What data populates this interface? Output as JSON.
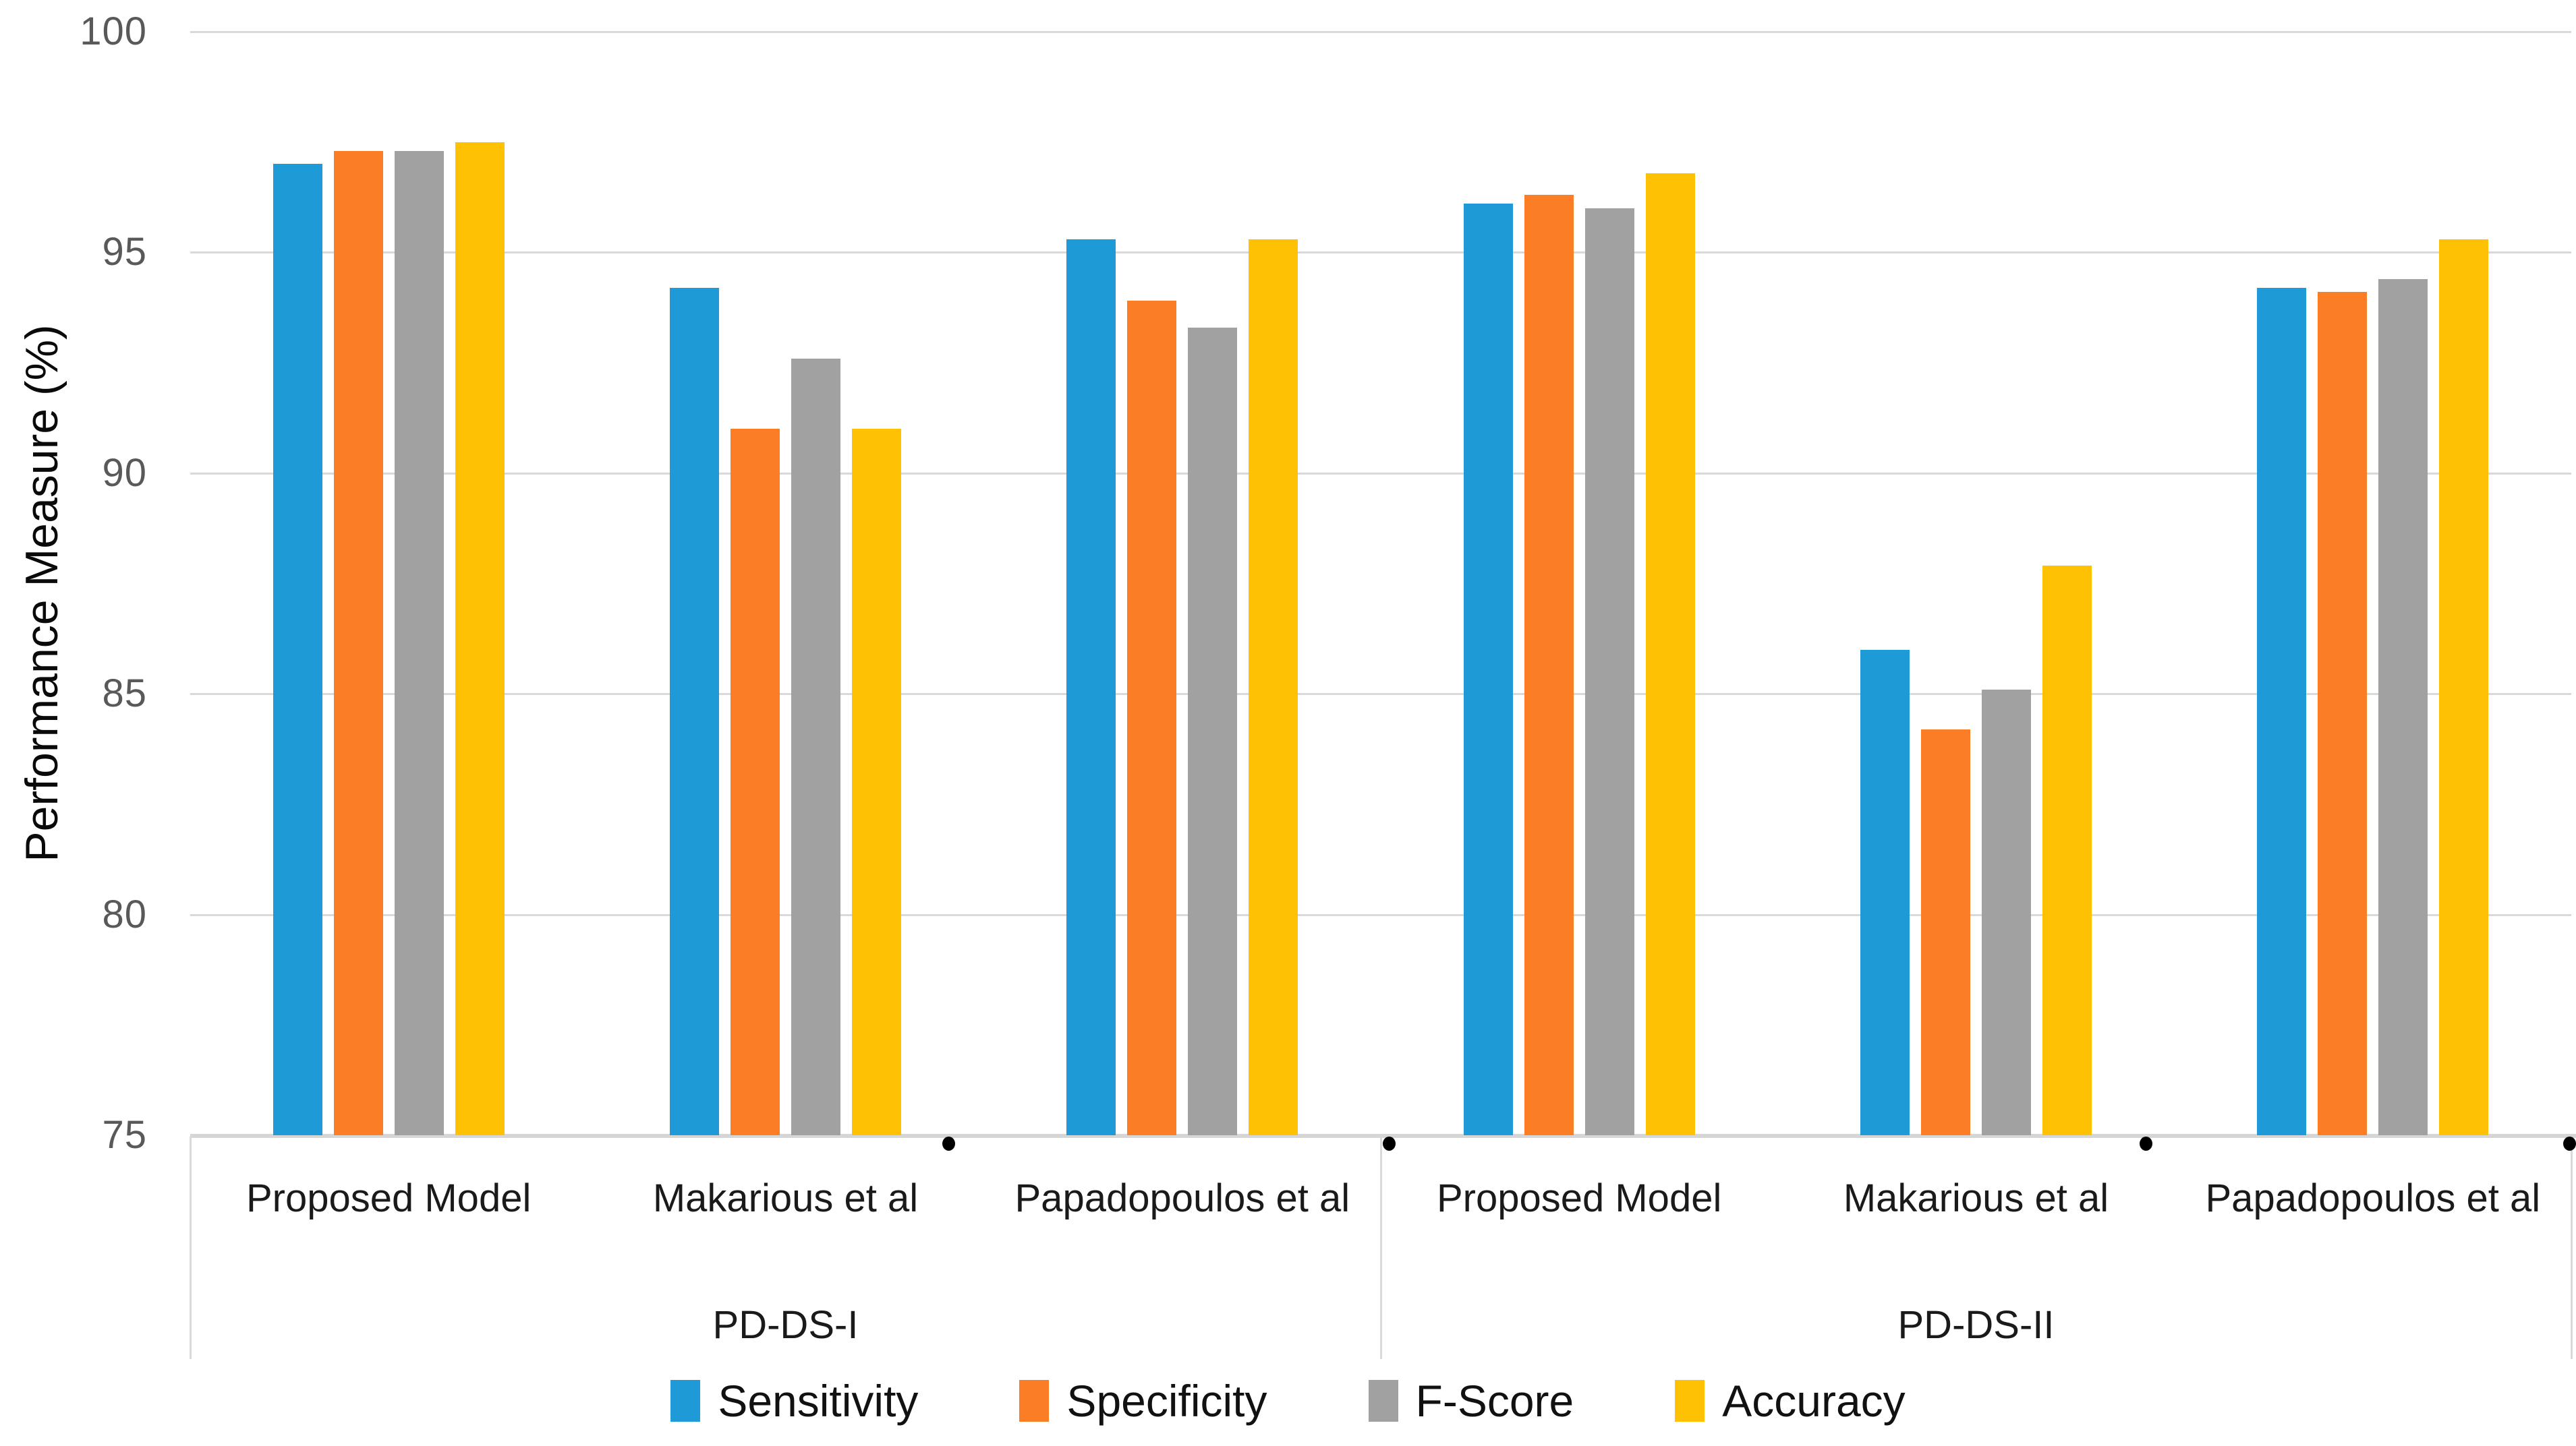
{
  "chart_data": {
    "type": "bar",
    "title": "",
    "xlabel": "",
    "ylabel": "Performance Measure (%)",
    "ylim": [
      75,
      100
    ],
    "y_ticks": [
      75,
      80,
      85,
      90,
      95,
      100
    ],
    "grid": "horizontal",
    "legend_position": "bottom",
    "categories": [
      "Proposed Model",
      "Makarious et al",
      "Papadopoulos et al",
      "Proposed Model",
      "Makarious et al",
      "Papadopoulos et al"
    ],
    "category_groups": [
      {
        "label": "PD-DS-I",
        "span": [
          0,
          2
        ]
      },
      {
        "label": "PD-DS-II",
        "span": [
          3,
          5
        ]
      }
    ],
    "series": [
      {
        "name": "Sensitivity",
        "color": "#1E9AD6",
        "values": [
          97.0,
          94.2,
          95.3,
          96.1,
          86.0,
          94.2
        ]
      },
      {
        "name": "Specificity",
        "color": "#FB7D26",
        "values": [
          97.3,
          91.0,
          93.9,
          96.3,
          84.2,
          94.1
        ]
      },
      {
        "name": "F-Score",
        "color": "#A1A1A1",
        "values": [
          97.3,
          92.6,
          93.3,
          96.0,
          85.1,
          94.4
        ]
      },
      {
        "name": "Accuracy",
        "color": "#FFC104",
        "values": [
          97.5,
          91.0,
          95.3,
          96.8,
          87.9,
          95.3
        ]
      }
    ],
    "colors": {
      "gridline": "#D9D9D9",
      "axis_line": "#D6D6D6",
      "tick_text": "#595959",
      "label_text": "#1A1A1A",
      "dot": "#000000"
    }
  }
}
